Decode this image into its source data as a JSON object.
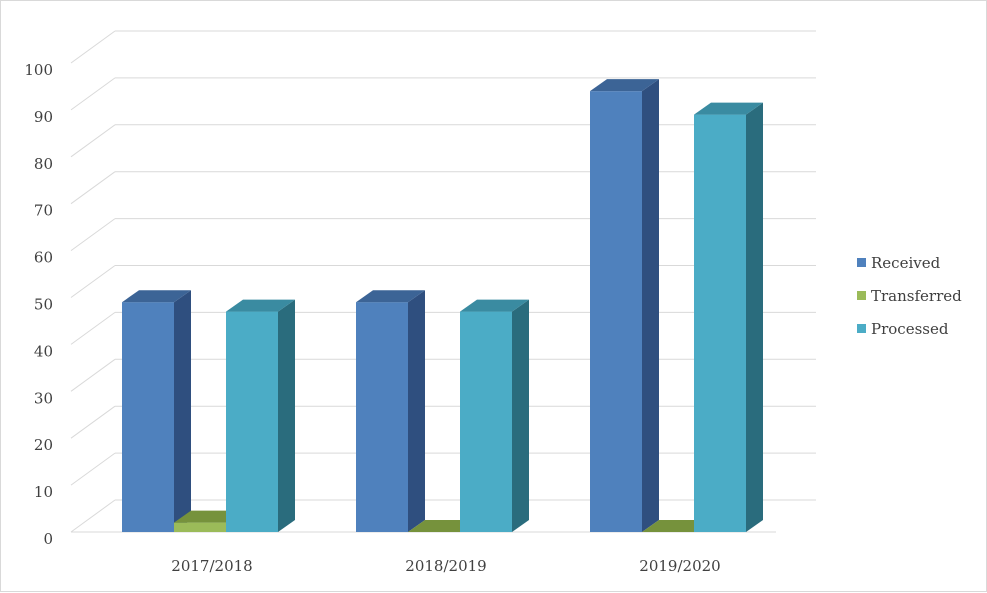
{
  "chart_data": {
    "type": "bar",
    "style": "3d-clustered",
    "categories": [
      "2017/2018",
      "2018/2019",
      "2019/2020"
    ],
    "series": [
      {
        "name": "Received",
        "values": [
          49,
          49,
          94
        ],
        "color": "#4f81bd",
        "side_color": "#2f4f7f",
        "top_color": "#3c6496"
      },
      {
        "name": "Transferred",
        "values": [
          2,
          0,
          0
        ],
        "color": "#9bbb59",
        "side_color": "#5f7a2e",
        "top_color": "#76923c"
      },
      {
        "name": "Processed",
        "values": [
          47,
          47,
          89
        ],
        "color": "#4bacc6",
        "side_color": "#2a6c7d",
        "top_color": "#3a8ba1"
      }
    ],
    "ylim": [
      0,
      100
    ],
    "yticks": [
      "0",
      "10",
      "20",
      "30",
      "40",
      "50",
      "60",
      "70",
      "80",
      "90",
      "100"
    ],
    "grid": true,
    "legend_position": "right"
  }
}
